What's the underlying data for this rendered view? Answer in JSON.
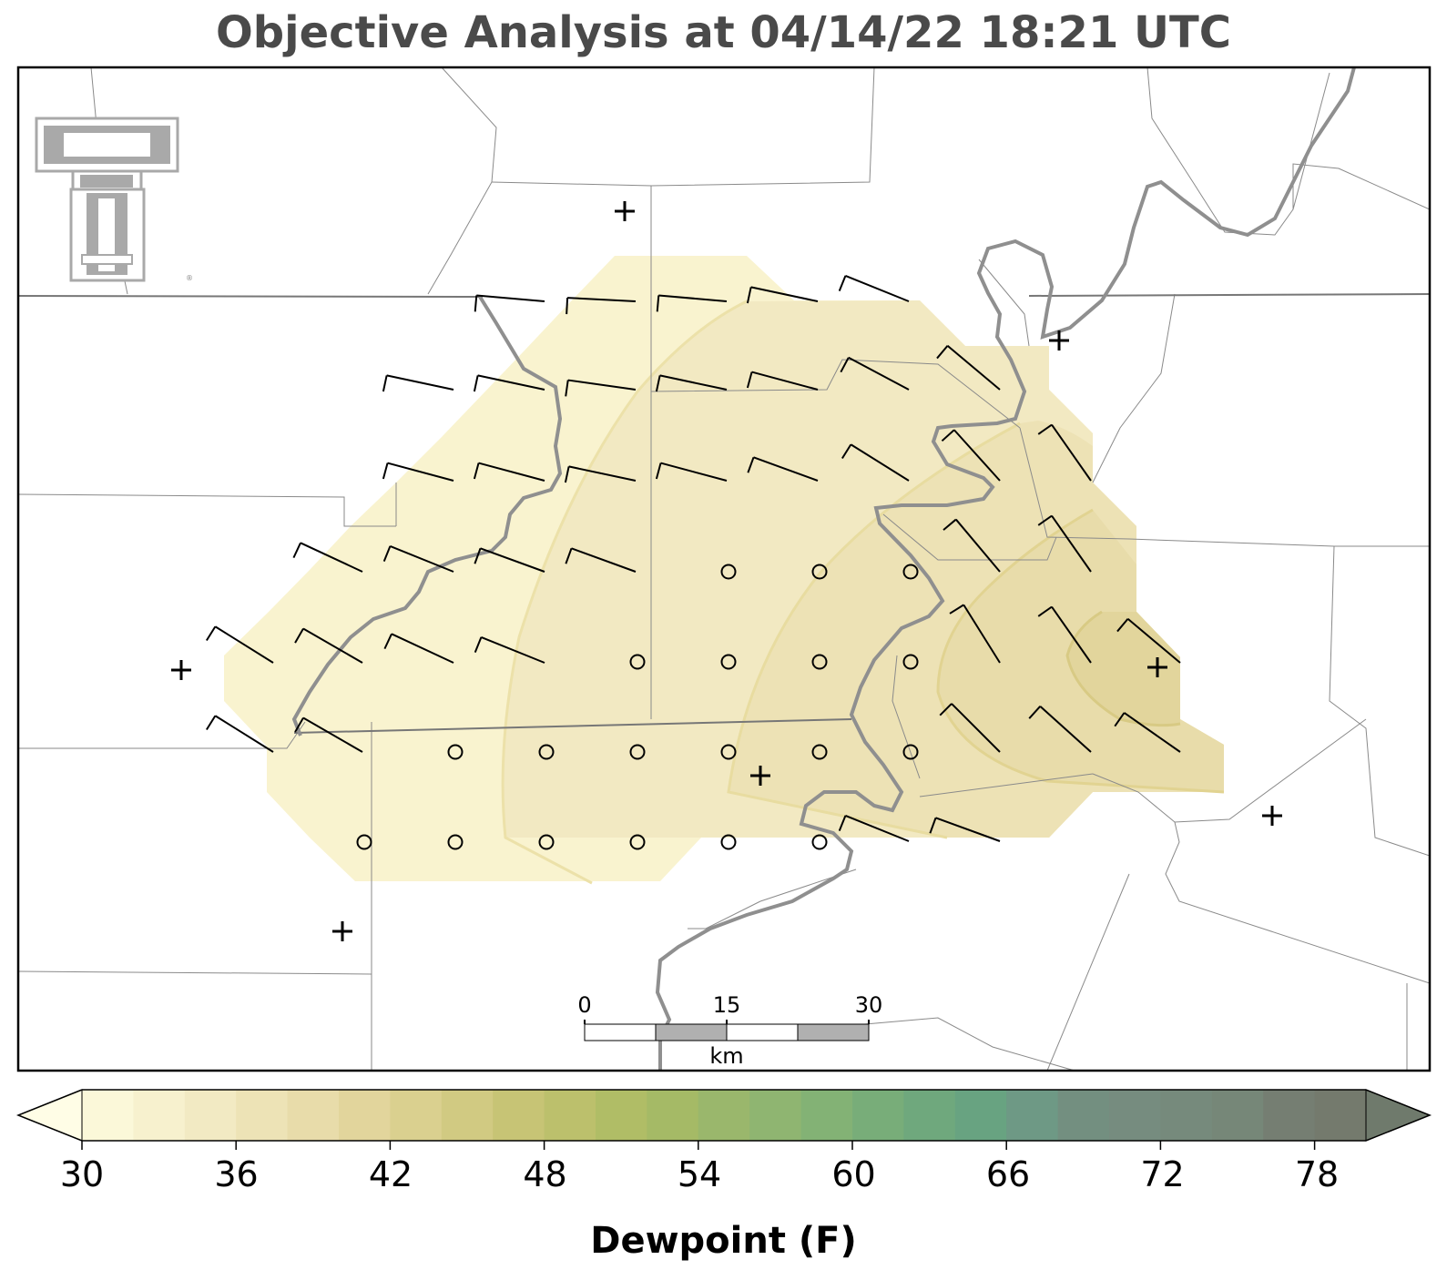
{
  "title": "Objective Analysis at 04/14/22 18:21 UTC",
  "colorbar": {
    "label": "Dewpoint (F)",
    "ticks": [
      "30",
      "36",
      "42",
      "48",
      "54",
      "60",
      "66",
      "72",
      "78"
    ],
    "min": 30,
    "max": 80,
    "step": 2,
    "colors": [
      "#fbf8d9",
      "#f7f1ce",
      "#f2eac3",
      "#ede3b6",
      "#e8dcaa",
      "#e2d59c",
      "#dad08f",
      "#d1ca82",
      "#c7c475",
      "#bcc06c",
      "#b0bd66",
      "#a5ba66",
      "#9ab76c",
      "#8fb571",
      "#83b275",
      "#78ad79",
      "#6fa87d",
      "#68a381",
      "#6e9985",
      "#738f80",
      "#768c7f",
      "#768a7c",
      "#768778",
      "#757e72",
      "#747a6d"
    ],
    "under_color": "#fffde6",
    "over_color": "#6f7a6c"
  },
  "scale_bar": {
    "labels": [
      "0",
      "15",
      "30"
    ],
    "unit": "km"
  },
  "stations_plus": [
    {
      "id": "p1"
    },
    {
      "id": "p2"
    },
    {
      "id": "p3"
    },
    {
      "id": "p4"
    },
    {
      "id": "p5"
    },
    {
      "id": "p6"
    },
    {
      "id": "p7"
    }
  ],
  "logo": "texas-tech-double-t-logo",
  "dewpoint_contour_levels_shown": [
    32,
    34,
    36,
    38,
    40
  ]
}
